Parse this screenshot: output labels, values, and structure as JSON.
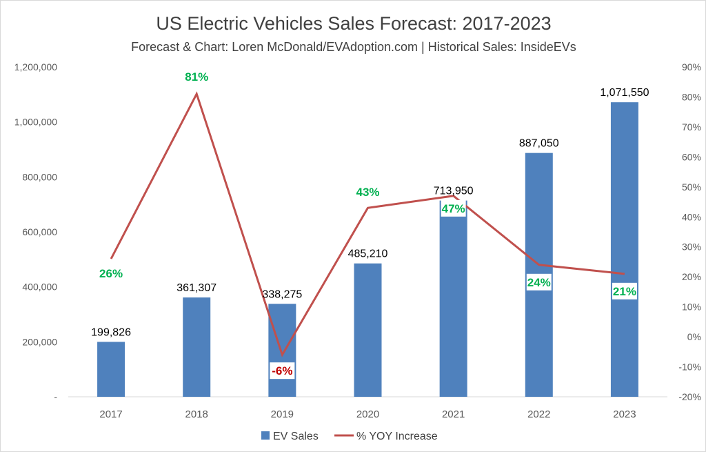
{
  "chart_data": {
    "type": "bar+line",
    "title": "US Electric Vehicles Sales Forecast: 2017-2023",
    "subtitle": "Forecast & Chart: Loren McDonald/EVAdoption.com | Historical Sales: InsideEVs",
    "categories": [
      "2017",
      "2018",
      "2019",
      "2020",
      "2021",
      "2022",
      "2023"
    ],
    "series": [
      {
        "name": "EV Sales",
        "type": "bar",
        "axis": "left",
        "color": "#4f81bd",
        "values": [
          199826,
          361307,
          338275,
          485210,
          713950,
          887050,
          1071550
        ],
        "labels": [
          "199,826",
          "361,307",
          "338,275",
          "485,210",
          "713,950",
          "887,050",
          "1,071,550"
        ]
      },
      {
        "name": "% YOY Increase",
        "type": "line",
        "axis": "right",
        "color": "#c0504d",
        "values": [
          26,
          81,
          -6,
          43,
          47,
          24,
          21
        ],
        "labels": [
          "26%",
          "81%",
          "-6%",
          "43%",
          "47%",
          "24%",
          "21%"
        ],
        "label_colors": [
          "#00b050",
          "#00b050",
          "#c00000",
          "#00b050",
          "#00b050",
          "#00b050",
          "#00b050"
        ]
      }
    ],
    "y_left": {
      "range": [
        0,
        1200000
      ],
      "ticks": [
        "-",
        "200,000",
        "400,000",
        "600,000",
        "800,000",
        "1,000,000",
        "1,200,000"
      ]
    },
    "y_right": {
      "range": [
        -20,
        90
      ],
      "ticks": [
        "-20%",
        "-10%",
        "0%",
        "10%",
        "20%",
        "30%",
        "40%",
        "50%",
        "60%",
        "70%",
        "80%",
        "90%"
      ]
    },
    "grid": false,
    "legend": "bottom"
  }
}
